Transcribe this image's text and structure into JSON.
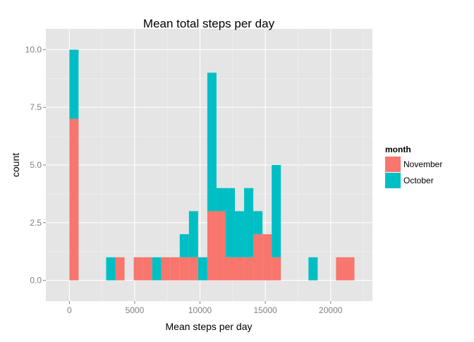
{
  "chart_data": {
    "type": "bar",
    "stacked": true,
    "title": "Mean total steps per day",
    "xlabel": "Mean steps per day",
    "ylabel": "count",
    "xlim": [
      -1800,
      23200
    ],
    "ylim": [
      -0.9,
      10.9
    ],
    "x_ticks": [
      0,
      5000,
      10000,
      15000,
      20000
    ],
    "x_tick_labels": [
      "0",
      "5000",
      "10000",
      "15000",
      "20000"
    ],
    "y_ticks": [
      0,
      2.5,
      5,
      7.5,
      10
    ],
    "y_tick_labels": [
      "0.0",
      "2.5",
      "5.0",
      "7.5",
      "10.0"
    ],
    "bin_width": 704,
    "bin_starts": [
      0,
      704,
      1408,
      2112,
      2816,
      3520,
      4224,
      4928,
      5632,
      6336,
      7040,
      7744,
      8448,
      9152,
      9856,
      10560,
      11264,
      11968,
      12672,
      13376,
      14080,
      14784,
      15488,
      16192,
      16896,
      17600,
      18304,
      19008,
      19712,
      20416,
      21120
    ],
    "series": [
      {
        "name": "November",
        "color": "#F8766D",
        "values": [
          7,
          0,
          0,
          0,
          0,
          1,
          0,
          1,
          1,
          0,
          1,
          1,
          1,
          1,
          0,
          3,
          3,
          1,
          1,
          1,
          2,
          2,
          1,
          0,
          0,
          0,
          0,
          0,
          0,
          1,
          1
        ]
      },
      {
        "name": "October",
        "color": "#00BFC4",
        "values": [
          3,
          0,
          0,
          0,
          1,
          0,
          0,
          0,
          0,
          1,
          0,
          0,
          1,
          2,
          1,
          6,
          1,
          3,
          2,
          3,
          1,
          0,
          4,
          0,
          0,
          0,
          1,
          0,
          0,
          0,
          0
        ]
      }
    ],
    "legend": {
      "title": "month",
      "position": "right",
      "entries": [
        "November",
        "October"
      ]
    },
    "grid": true,
    "panel_background": "#E5E5E5"
  }
}
